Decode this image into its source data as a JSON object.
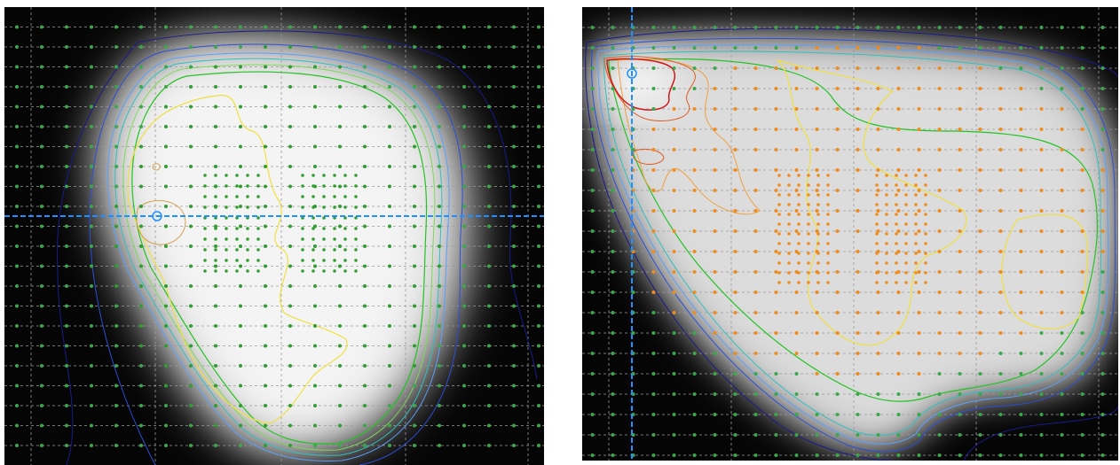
{
  "panels": [
    {
      "id": "left",
      "crosshair": {
        "orientation": "horizontal",
        "color": "#1e90ff"
      },
      "point_color": "#2e9e2e",
      "contour_colors": [
        "#1a1a8c",
        "#2b4fd8",
        "#5aa0ff",
        "#30c0c0",
        "#7ed957",
        "#22c322",
        "#f0e040",
        "#d4a050"
      ]
    },
    {
      "id": "right",
      "crosshair": {
        "orientation": "vertical",
        "color": "#1e90ff"
      },
      "point_color": "#f08c1e",
      "contour_colors": [
        "#1a1a8c",
        "#2b4fd8",
        "#5aa0ff",
        "#30c0c0",
        "#22c322",
        "#f0e040",
        "#f0a040",
        "#e05a20",
        "#d01818"
      ]
    }
  ]
}
